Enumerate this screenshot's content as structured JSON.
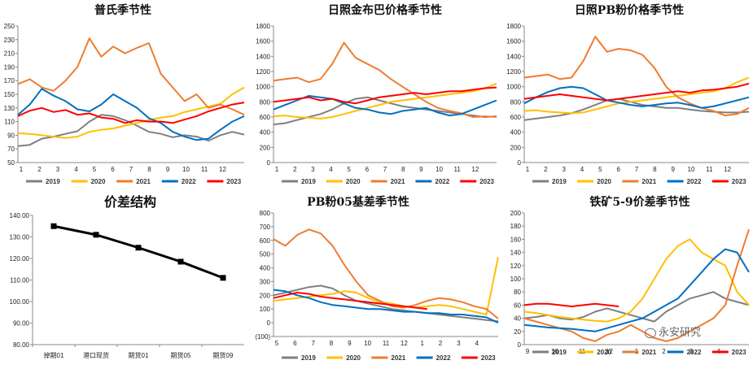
{
  "watermark": "永安研究",
  "chart_data": [
    {
      "id": "pu",
      "type": "line",
      "title": "普氏季节性",
      "x_ticks": [
        "1",
        "2",
        "3",
        "4",
        "5",
        "6",
        "7",
        "8",
        "9",
        "10",
        "11",
        "12"
      ],
      "ylim": [
        50,
        250
      ],
      "y_ticks": [
        "50",
        "70",
        "90",
        "110",
        "130",
        "150",
        "170",
        "190",
        "210",
        "230",
        "250"
      ],
      "legend_position": "bottom",
      "grid": false,
      "series": [
        {
          "name": "2019",
          "color": "#7f7f7f",
          "values": [
            74,
            76,
            85,
            88,
            92,
            96,
            110,
            120,
            118,
            112,
            104,
            95,
            92,
            87,
            90,
            88,
            82,
            90,
            95,
            91
          ]
        },
        {
          "name": "2020",
          "color": "#ffc000",
          "values": [
            93,
            92,
            90,
            88,
            86,
            88,
            95,
            98,
            100,
            104,
            108,
            112,
            116,
            118,
            124,
            128,
            132,
            136,
            150,
            160
          ]
        },
        {
          "name": "2021",
          "color": "#ed7d31",
          "values": [
            165,
            172,
            160,
            155,
            170,
            190,
            232,
            205,
            220,
            210,
            218,
            225,
            180,
            160,
            140,
            150,
            130,
            135,
            128,
            120
          ]
        },
        {
          "name": "2022",
          "color": "#0070c0",
          "values": [
            120,
            135,
            158,
            148,
            140,
            128,
            125,
            135,
            150,
            140,
            130,
            115,
            108,
            95,
            88,
            83,
            85,
            98,
            110,
            118
          ]
        },
        {
          "name": "2023",
          "color": "#ff0000",
          "values": [
            118,
            126,
            130,
            124,
            127,
            120,
            122,
            116,
            114,
            108,
            112,
            110,
            110,
            108,
            113,
            118,
            125,
            130,
            135,
            138
          ]
        }
      ]
    },
    {
      "id": "jinbuba",
      "type": "line",
      "title": "日照金布巴价格季节性",
      "x_ticks": [
        "1",
        "2",
        "3",
        "4",
        "5",
        "6",
        "7",
        "8",
        "9",
        "10",
        "11",
        "12"
      ],
      "ylim": [
        0,
        1800
      ],
      "y_ticks": [
        "0",
        "200",
        "400",
        "600",
        "800",
        "1000",
        "1200",
        "1400",
        "1600",
        "1800"
      ],
      "legend_position": "bottom",
      "grid": false,
      "series": [
        {
          "name": "2019",
          "color": "#7f7f7f",
          "values": [
            500,
            520,
            560,
            600,
            640,
            700,
            780,
            840,
            860,
            820,
            780,
            740,
            720,
            700,
            680,
            660,
            640,
            620,
            600,
            610
          ]
        },
        {
          "name": "2020",
          "color": "#ffc000",
          "values": [
            610,
            620,
            600,
            590,
            580,
            600,
            640,
            680,
            720,
            760,
            800,
            820,
            840,
            860,
            880,
            900,
            920,
            940,
            980,
            1040
          ]
        },
        {
          "name": "2021",
          "color": "#ed7d31",
          "values": [
            1080,
            1100,
            1120,
            1060,
            1100,
            1300,
            1580,
            1380,
            1300,
            1220,
            1100,
            1000,
            900,
            800,
            720,
            680,
            650,
            600,
            610,
            600
          ]
        },
        {
          "name": "2022",
          "color": "#0070c0",
          "values": [
            700,
            760,
            820,
            880,
            860,
            840,
            780,
            720,
            700,
            660,
            640,
            680,
            700,
            720,
            660,
            620,
            640,
            700,
            760,
            820
          ]
        },
        {
          "name": "2023",
          "color": "#ff0000",
          "values": [
            800,
            820,
            840,
            860,
            820,
            840,
            800,
            780,
            820,
            860,
            880,
            900,
            920,
            900,
            920,
            940,
            940,
            960,
            980,
            990
          ]
        }
      ]
    },
    {
      "id": "pbfen",
      "type": "line",
      "title": "日照PB粉价格季节性",
      "x_ticks": [
        "1",
        "2",
        "3",
        "4",
        "5",
        "6",
        "7",
        "8",
        "9",
        "10",
        "11",
        "12"
      ],
      "ylim": [
        0,
        1800
      ],
      "y_ticks": [
        "0",
        "200",
        "400",
        "600",
        "800",
        "1000",
        "1200",
        "1400",
        "1600",
        "1800"
      ],
      "legend_position": "bottom",
      "grid": false,
      "series": [
        {
          "name": "2019",
          "color": "#7f7f7f",
          "values": [
            560,
            580,
            600,
            620,
            650,
            700,
            760,
            820,
            840,
            800,
            760,
            740,
            720,
            720,
            700,
            680,
            670,
            660,
            660,
            670
          ]
        },
        {
          "name": "2020",
          "color": "#ffc000",
          "values": [
            680,
            690,
            670,
            660,
            650,
            660,
            700,
            740,
            780,
            800,
            820,
            840,
            860,
            880,
            900,
            920,
            940,
            980,
            1060,
            1120
          ]
        },
        {
          "name": "2021",
          "color": "#ed7d31",
          "values": [
            1120,
            1140,
            1160,
            1100,
            1120,
            1340,
            1660,
            1460,
            1500,
            1480,
            1420,
            1250,
            1000,
            860,
            780,
            720,
            680,
            620,
            640,
            720
          ]
        },
        {
          "name": "2022",
          "color": "#0070c0",
          "values": [
            780,
            860,
            930,
            980,
            1000,
            980,
            900,
            820,
            790,
            760,
            740,
            760,
            780,
            790,
            760,
            720,
            740,
            780,
            820,
            860
          ]
        },
        {
          "name": "2023",
          "color": "#ff0000",
          "values": [
            840,
            860,
            880,
            900,
            880,
            860,
            840,
            820,
            840,
            860,
            880,
            900,
            920,
            940,
            920,
            950,
            960,
            980,
            1000,
            1040
          ]
        }
      ]
    },
    {
      "id": "spread",
      "type": "line",
      "title": "价差结构",
      "categories": [
        "掉期01",
        "港口现货",
        "期货01",
        "期货05",
        "期货09"
      ],
      "values": [
        135,
        131,
        125,
        118.5,
        111
      ],
      "ylim": [
        80,
        140
      ],
      "y_ticks": [
        "80.00",
        "90.00",
        "100.00",
        "110.00",
        "120.00",
        "130.00",
        "140.00"
      ],
      "grid": false,
      "series": [
        {
          "name": "",
          "color": "#000000",
          "values": [
            135,
            131,
            125,
            118.5,
            111
          ]
        }
      ]
    },
    {
      "id": "basis",
      "type": "line",
      "title": "PB粉05基差季节性",
      "x_ticks": [
        "5",
        "6",
        "7",
        "8",
        "9",
        "10",
        "11",
        "12",
        "1",
        "2",
        "3",
        "4"
      ],
      "ylim": [
        -100,
        800
      ],
      "y_ticks": [
        "(100)",
        "0",
        "100",
        "200",
        "300",
        "400",
        "500",
        "600",
        "700",
        "800"
      ],
      "legend_position": "bottom",
      "grid": false,
      "series": [
        {
          "name": "2019",
          "color": "#7f7f7f",
          "values": [
            200,
            220,
            240,
            260,
            270,
            250,
            200,
            160,
            140,
            120,
            100,
            90,
            80,
            70,
            60,
            50,
            40,
            30,
            20,
            10
          ]
        },
        {
          "name": "2020",
          "color": "#ffc000",
          "values": [
            160,
            170,
            180,
            190,
            200,
            210,
            230,
            220,
            180,
            150,
            140,
            120,
            110,
            120,
            130,
            120,
            100,
            80,
            60,
            480
          ]
        },
        {
          "name": "2021",
          "color": "#ed7d31",
          "values": [
            610,
            560,
            640,
            680,
            650,
            560,
            420,
            300,
            200,
            160,
            120,
            110,
            130,
            160,
            180,
            170,
            150,
            120,
            100,
            30
          ]
        },
        {
          "name": "2022",
          "color": "#0070c0",
          "values": [
            240,
            230,
            200,
            180,
            150,
            130,
            120,
            110,
            100,
            100,
            90,
            80,
            80,
            70,
            70,
            60,
            60,
            50,
            40,
            0
          ]
        },
        {
          "name": "2023",
          "color": "#ff0000",
          "values": [
            180,
            200,
            220,
            210,
            190,
            180,
            170,
            160,
            150,
            140,
            130,
            120,
            110,
            100,
            null,
            null,
            null,
            null,
            null,
            null
          ]
        }
      ]
    },
    {
      "id": "iron59",
      "type": "line",
      "title": "铁矿5-9价差季节性",
      "x_ticks": [
        "9",
        "10",
        "11",
        "12",
        "1",
        "2",
        "3",
        "4"
      ],
      "ylim": [
        0,
        200
      ],
      "y_ticks": [
        "0",
        "20",
        "40",
        "60",
        "80",
        "100",
        "120",
        "140",
        "160",
        "180",
        "200"
      ],
      "legend_position": "bottom",
      "grid": false,
      "series": [
        {
          "name": "2019",
          "color": "#7f7f7f",
          "values": [
            40,
            42,
            45,
            40,
            38,
            42,
            50,
            55,
            50,
            45,
            40,
            35,
            50,
            60,
            70,
            75,
            80,
            70,
            65,
            60
          ]
        },
        {
          "name": "2020",
          "color": "#ffc000",
          "values": [
            50,
            48,
            45,
            42,
            40,
            38,
            36,
            35,
            40,
            50,
            70,
            100,
            130,
            150,
            160,
            140,
            130,
            120,
            80,
            60
          ]
        },
        {
          "name": "2021",
          "color": "#ed7d31",
          "values": [
            40,
            35,
            30,
            25,
            20,
            10,
            5,
            15,
            20,
            30,
            20,
            10,
            5,
            10,
            20,
            30,
            40,
            60,
            120,
            175
          ]
        },
        {
          "name": "2022",
          "color": "#0070c0",
          "values": [
            30,
            28,
            26,
            25,
            24,
            22,
            20,
            25,
            30,
            35,
            40,
            50,
            60,
            70,
            90,
            110,
            130,
            145,
            140,
            110
          ]
        },
        {
          "name": "2023",
          "color": "#ff0000",
          "values": [
            60,
            62,
            62,
            60,
            58,
            60,
            62,
            60,
            58,
            null,
            null,
            null,
            null,
            null,
            null,
            null,
            null,
            null,
            null,
            null
          ]
        }
      ]
    }
  ]
}
